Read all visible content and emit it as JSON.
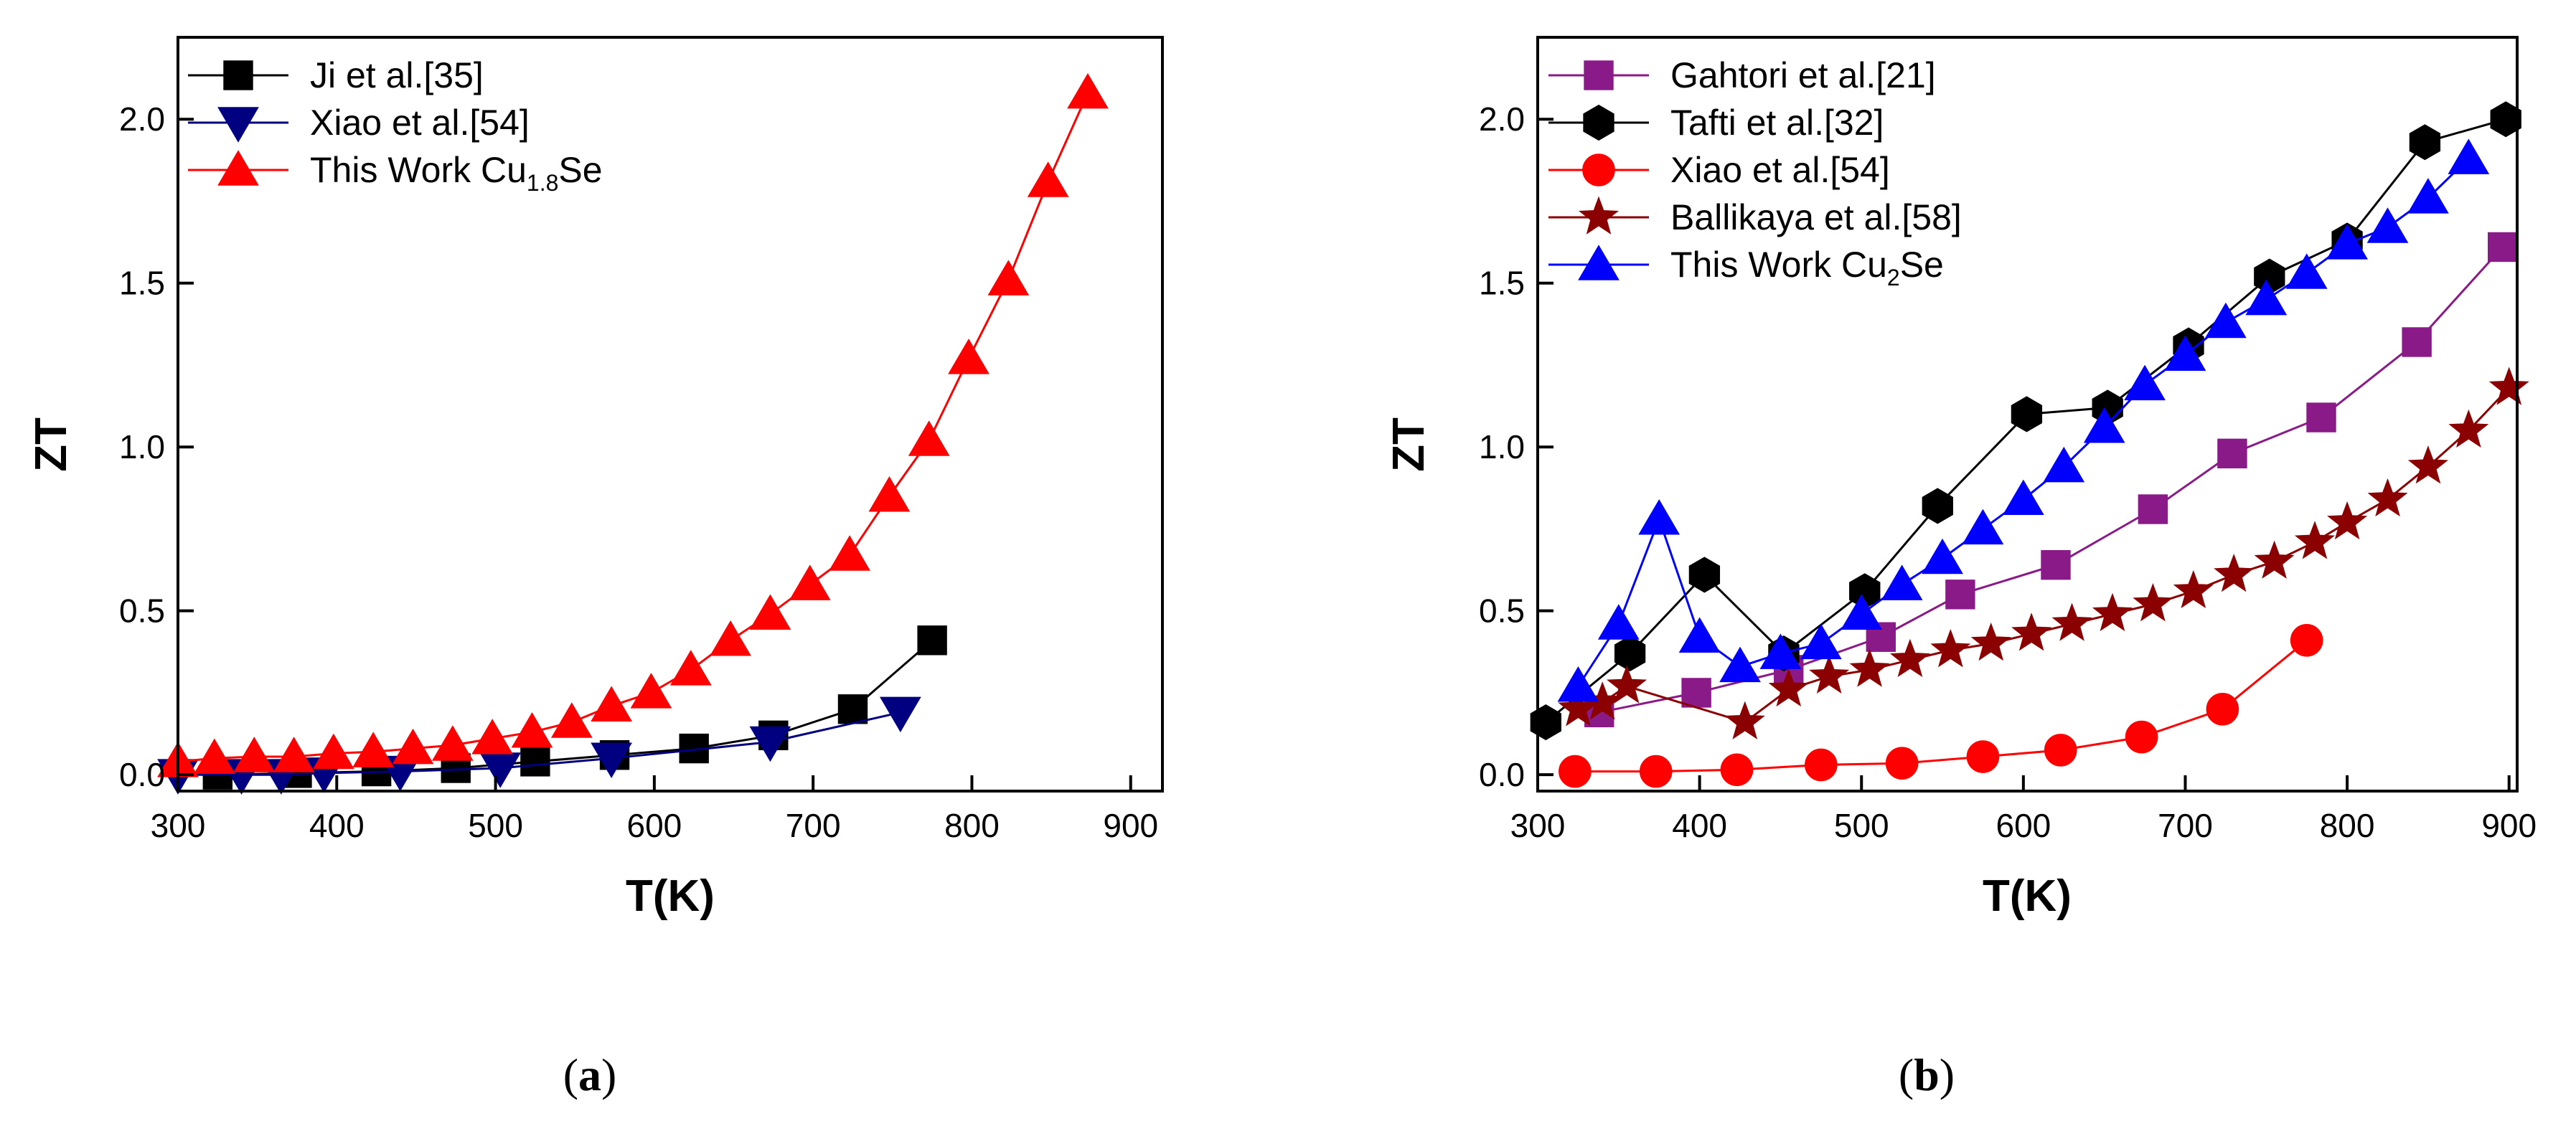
{
  "figure": {
    "panel_labels": [
      "a",
      "b"
    ]
  },
  "chart_data": [
    {
      "type": "line",
      "panel": "a",
      "xlabel": "T(K)",
      "ylabel": "ZT",
      "xlim": [
        300,
        920
      ],
      "ylim": [
        -0.05,
        2.25
      ],
      "xticks": [
        300,
        400,
        500,
        600,
        700,
        800,
        900
      ],
      "yticks": [
        0.0,
        0.5,
        1.0,
        1.5,
        2.0
      ],
      "xtick_labels": [
        "300",
        "400",
        "500",
        "600",
        "700",
        "800",
        "900"
      ],
      "ytick_labels": [
        "0.0",
        "0.5",
        "1.0",
        "1.5",
        "2.0"
      ],
      "legend_position": "top-left",
      "series": [
        {
          "name": "Ji et al.[35]",
          "label_main": "Ji et al.[35]",
          "label_sub": "",
          "label_tail": "",
          "color": "#000000",
          "marker": "square",
          "x": [
            325,
            375,
            425,
            475,
            525,
            575,
            625,
            675,
            725,
            775
          ],
          "y": [
            0.0,
            0.005,
            0.01,
            0.02,
            0.04,
            0.06,
            0.08,
            0.12,
            0.2,
            0.41
          ]
        },
        {
          "name": "Xiao et al.[54]",
          "label_main": "Xiao et al.[54]",
          "label_sub": "",
          "label_tail": "",
          "color": "#000080",
          "marker": "triangle-down",
          "x": [
            300,
            340,
            365,
            392,
            440,
            503,
            573,
            673,
            755
          ],
          "y": [
            0.0,
            0.0,
            0.0,
            0.005,
            0.01,
            0.02,
            0.05,
            0.1,
            0.19
          ]
        },
        {
          "name": "This Work Cu1.8Se",
          "label_main": "This Work Cu",
          "label_sub": "1.8",
          "label_tail": "Se",
          "color": "#ff0000",
          "marker": "triangle-up",
          "x": [
            300,
            323,
            348,
            373,
            398,
            423,
            448,
            473,
            498,
            523,
            548,
            573,
            598,
            623,
            648,
            673,
            698,
            723,
            748,
            773,
            798,
            823,
            848,
            873
          ],
          "y": [
            0.04,
            0.05,
            0.055,
            0.055,
            0.065,
            0.07,
            0.08,
            0.09,
            0.11,
            0.13,
            0.16,
            0.21,
            0.25,
            0.32,
            0.41,
            0.49,
            0.58,
            0.67,
            0.85,
            1.02,
            1.27,
            1.51,
            1.81,
            2.08
          ]
        }
      ]
    },
    {
      "type": "line",
      "panel": "b",
      "xlabel": "T(K)",
      "ylabel": "ZT",
      "xlim": [
        300,
        905
      ],
      "ylim": [
        -0.05,
        2.25
      ],
      "xticks": [
        300,
        400,
        500,
        600,
        700,
        800,
        900
      ],
      "yticks": [
        0.0,
        0.5,
        1.0,
        1.5,
        2.0
      ],
      "xtick_labels": [
        "300",
        "400",
        "500",
        "600",
        "700",
        "800",
        "900"
      ],
      "ytick_labels": [
        "0.0",
        "0.5",
        "1.0",
        "1.5",
        "2.0"
      ],
      "legend_position": "top-left",
      "series": [
        {
          "name": "Gahtori et al.[21]",
          "label_main": "Gahtori et al.[21]",
          "label_sub": "",
          "label_tail": "",
          "color": "#8b1a89",
          "marker": "square",
          "x": [
            338,
            398,
            455,
            512,
            561,
            620,
            680,
            729,
            784,
            843,
            896
          ],
          "y": [
            0.19,
            0.25,
            0.32,
            0.42,
            0.55,
            0.64,
            0.81,
            0.98,
            1.09,
            1.32,
            1.61
          ]
        },
        {
          "name": "Tafti et al.[32]",
          "label_main": "Tafti et al.[32]",
          "label_sub": "",
          "label_tail": "",
          "color": "#000000",
          "marker": "hexagon",
          "x": [
            305,
            357,
            403,
            452,
            502,
            547,
            602,
            652,
            702,
            752,
            800,
            848,
            898
          ],
          "y": [
            0.16,
            0.37,
            0.61,
            0.37,
            0.56,
            0.82,
            1.1,
            1.12,
            1.31,
            1.52,
            1.63,
            1.93,
            2.0
          ]
        },
        {
          "name": "Xiao et al.[54]",
          "label_main": "Xiao et al.[54]",
          "label_sub": "",
          "label_tail": "",
          "color": "#ff0000",
          "marker": "circle",
          "x": [
            323,
            373,
            423,
            475,
            525,
            575,
            623,
            673,
            723,
            775
          ],
          "y": [
            0.01,
            0.01,
            0.015,
            0.03,
            0.035,
            0.055,
            0.075,
            0.115,
            0.2,
            0.41
          ]
        },
        {
          "name": "Ballikaya et al.[58]",
          "label_main": "Ballikaya et al.[58]",
          "label_sub": "",
          "label_tail": "",
          "color": "#8b0000",
          "marker": "star",
          "x": [
            325,
            340,
            355,
            428,
            455,
            480,
            505,
            530,
            555,
            580,
            605,
            630,
            655,
            680,
            705,
            730,
            755,
            780,
            800,
            825,
            850,
            875,
            900
          ],
          "y": [
            0.2,
            0.22,
            0.27,
            0.16,
            0.26,
            0.3,
            0.32,
            0.35,
            0.38,
            0.4,
            0.43,
            0.46,
            0.49,
            0.52,
            0.56,
            0.61,
            0.65,
            0.71,
            0.77,
            0.84,
            0.94,
            1.05,
            1.18
          ]
        },
        {
          "name": "This Work Cu2Se",
          "label_main": "This Work Cu",
          "label_sub": "2",
          "label_tail": "Se",
          "color": "#0000ff",
          "marker": "triangle-up",
          "x": [
            325,
            350,
            375,
            400,
            425,
            450,
            475,
            500,
            525,
            550,
            575,
            600,
            625,
            650,
            675,
            700,
            725,
            750,
            775,
            800,
            825,
            850,
            875
          ],
          "y": [
            0.27,
            0.46,
            0.78,
            0.42,
            0.33,
            0.37,
            0.4,
            0.49,
            0.58,
            0.66,
            0.75,
            0.84,
            0.94,
            1.06,
            1.19,
            1.28,
            1.38,
            1.45,
            1.53,
            1.62,
            1.67,
            1.76,
            1.88
          ]
        }
      ]
    }
  ]
}
